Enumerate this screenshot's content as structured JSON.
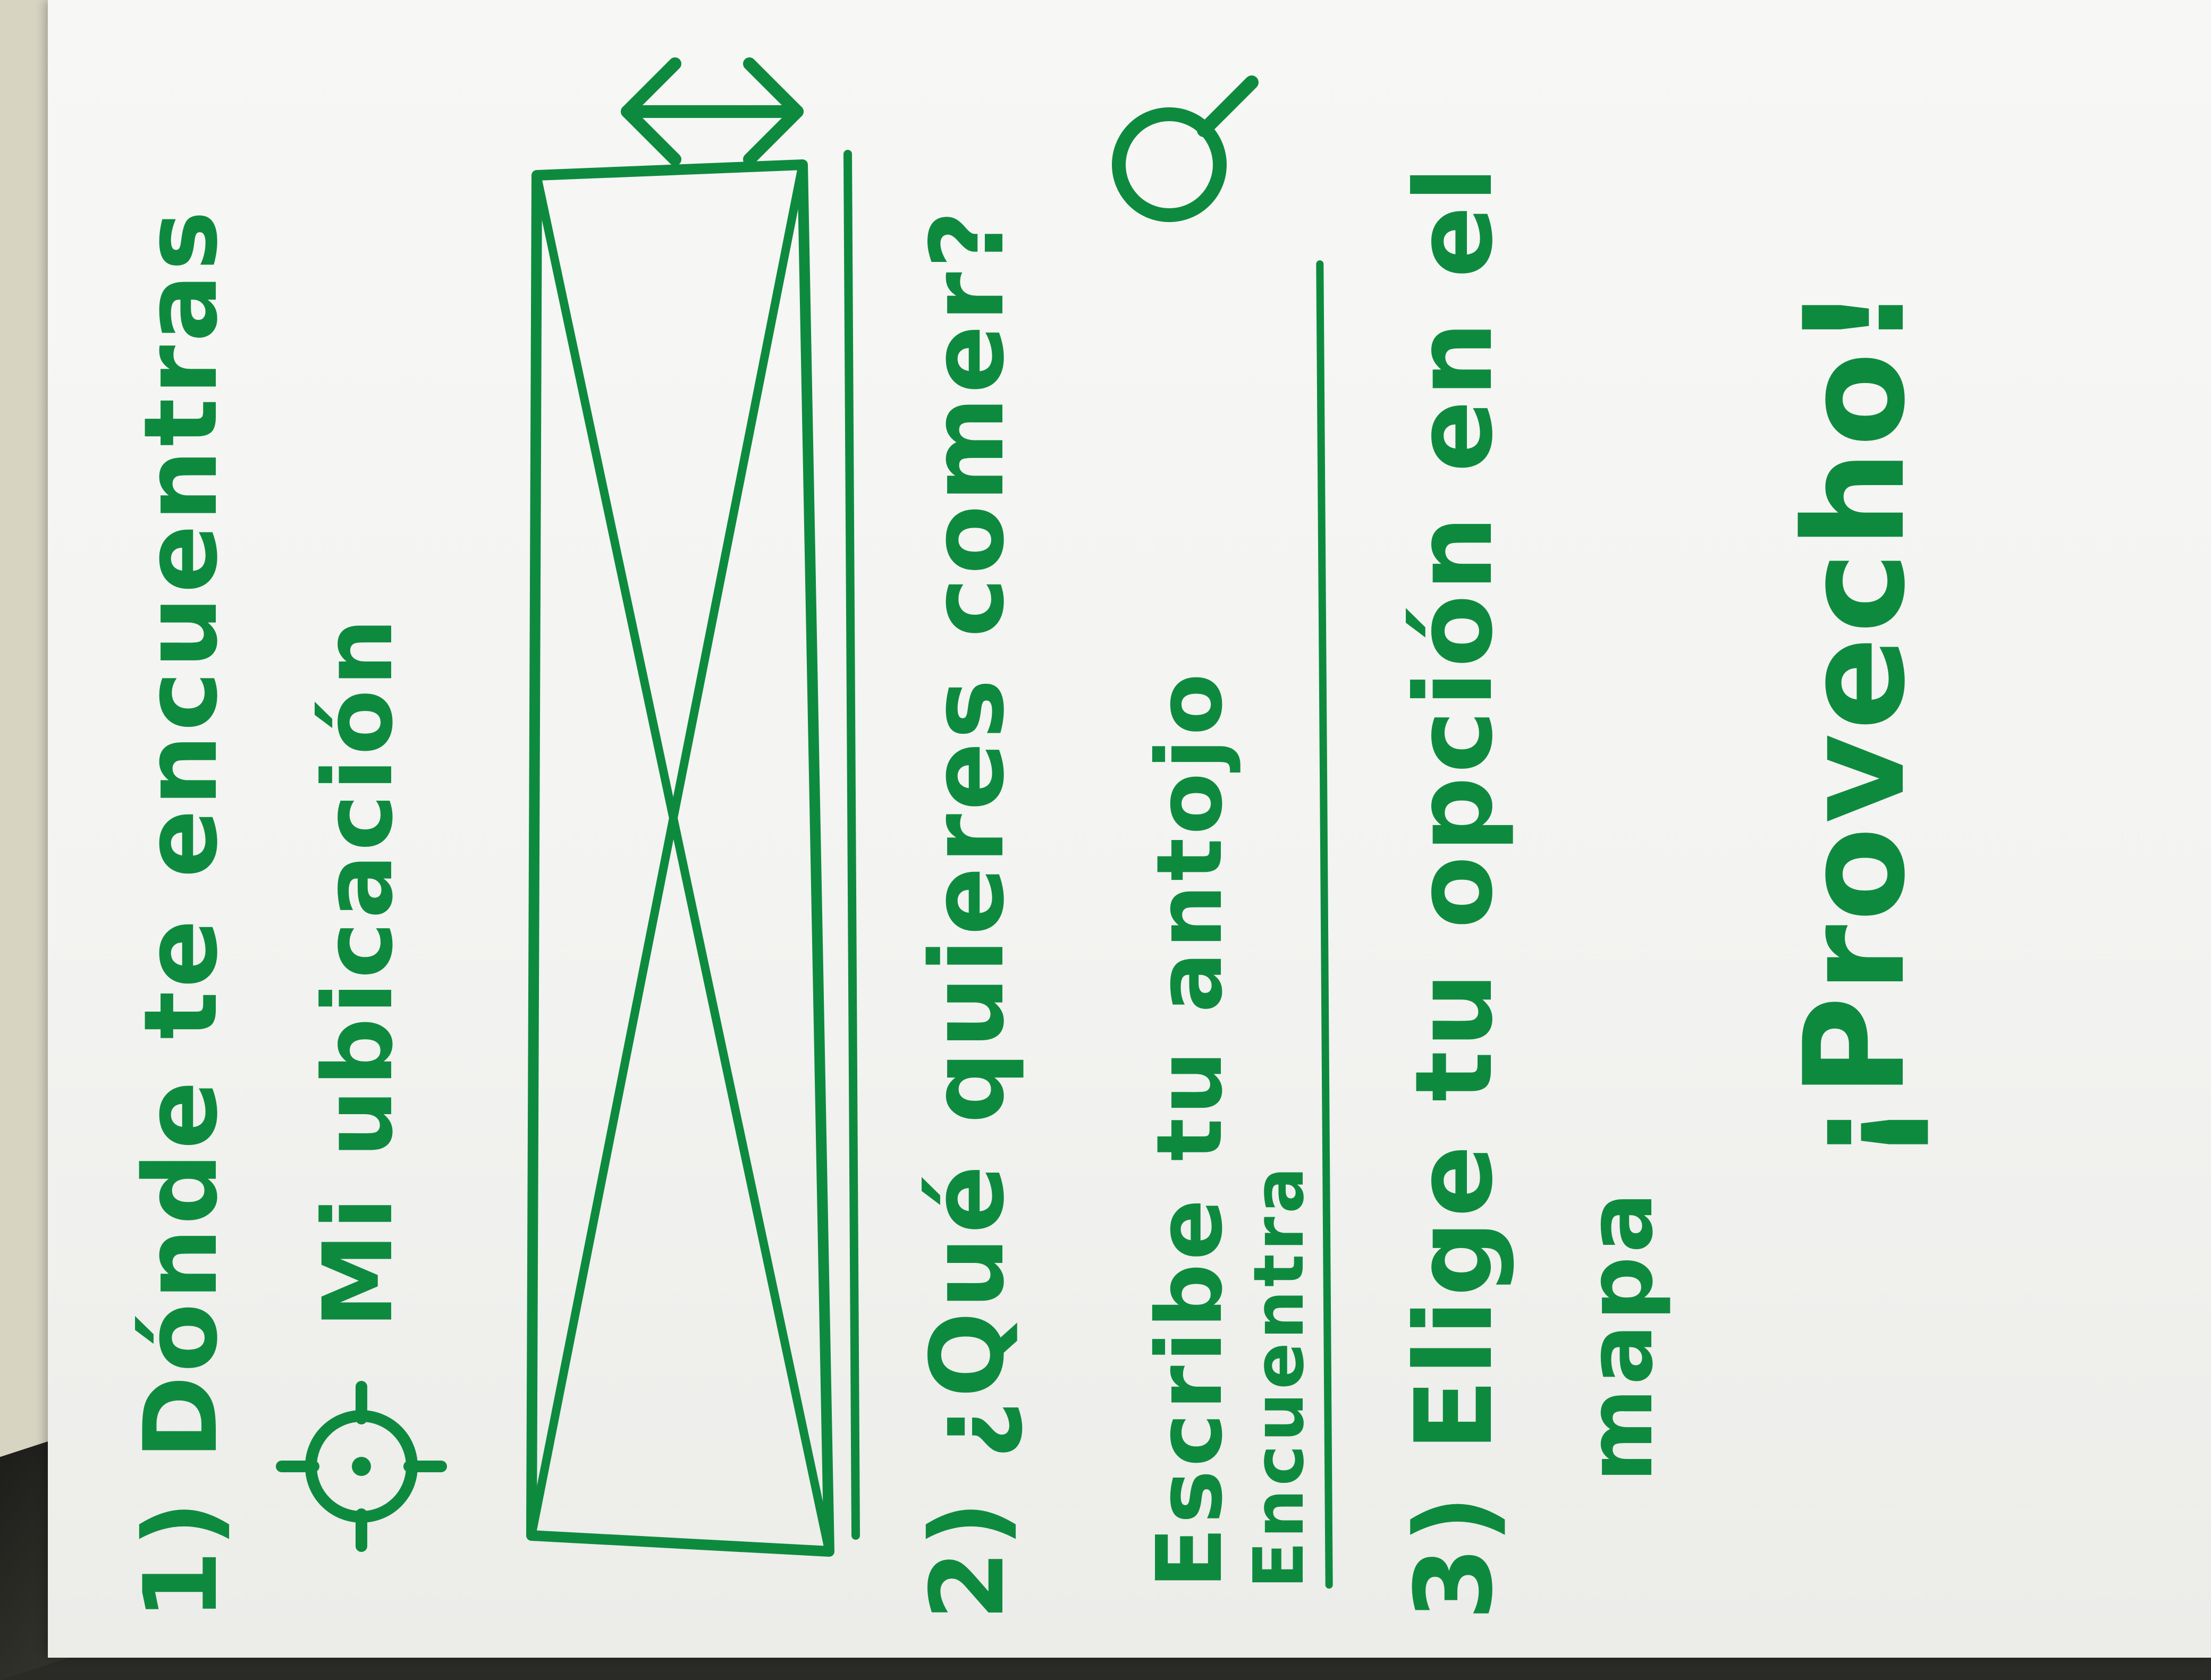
{
  "steps": {
    "step1": {
      "label": "1) Dónde te encuentras"
    },
    "location": {
      "icon": "location-target-icon",
      "label": "Mi ubicación"
    },
    "map_placeholder": {
      "icon": "image-placeholder-icon",
      "resize_icon": "resize-vertical-icon"
    },
    "step2": {
      "label": "2) ¿Qué quieres comer?"
    },
    "search": {
      "placeholder": "Escribe tu antojo",
      "alt_placeholder": "Encuentra",
      "icon": "search-icon"
    },
    "step3": {
      "label": "3) Elige tu opción en el",
      "suffix": "mapa"
    },
    "closing": {
      "label": "¡Provecho!"
    }
  },
  "colors": {
    "ink": "#0e8a3f",
    "paper": "#f5f5f3"
  }
}
